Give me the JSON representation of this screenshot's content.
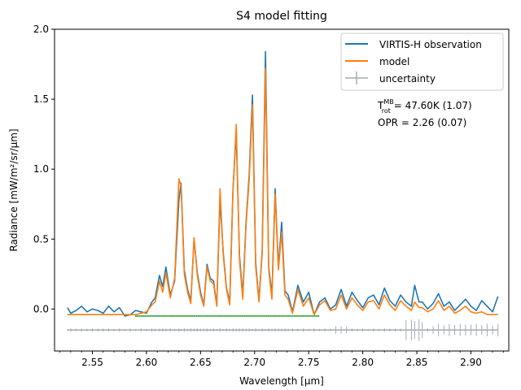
{
  "chart_data": {
    "type": "line",
    "title": "S4 model fitting",
    "xlabel": "Wavelength [μm]",
    "ylabel": "Radiance [mW/m²/sr/μm]",
    "xlim": [
      2.515,
      2.935
    ],
    "ylim": [
      -0.3,
      2.0
    ],
    "xticks": [
      2.55,
      2.6,
      2.65,
      2.7,
      2.75,
      2.8,
      2.85,
      2.9
    ],
    "xtick_labels": [
      "2.55",
      "2.60",
      "2.65",
      "2.70",
      "2.75",
      "2.80",
      "2.85",
      "2.90"
    ],
    "yticks": [
      0.0,
      0.5,
      1.0,
      1.5,
      2.0
    ],
    "ytick_labels": [
      "0.0",
      "0.5",
      "1.0",
      "1.5",
      "2.0"
    ],
    "legend": {
      "placement": "upper right",
      "entries": [
        {
          "label": "VIRTIS-H observation",
          "color": "#1f77b4",
          "style": "line"
        },
        {
          "label": "model",
          "color": "#ff7f0e",
          "style": "line"
        },
        {
          "label": "uncertainty",
          "color": "#a3acb5",
          "style": "errorbar"
        }
      ]
    },
    "annotations": {
      "trot_prefix": "T",
      "trot_sup": "MB",
      "trot_sub": "rot",
      "trot_value": " = 47.60K (1.07)",
      "opr": "OPR = 2.26 (0.07)"
    },
    "fit_band": {
      "x_start": 2.59,
      "x_end": 2.76,
      "y": -0.05,
      "color": "#2ca02c"
    },
    "uncertainty_offset": -0.15,
    "series": [
      {
        "name": "VIRTIS-H observation",
        "color": "#1f77b4",
        "x": [
          2.527,
          2.53,
          2.535,
          2.54,
          2.545,
          2.55,
          2.555,
          2.56,
          2.565,
          2.57,
          2.575,
          2.58,
          2.585,
          2.59,
          2.595,
          2.6,
          2.605,
          2.608,
          2.612,
          2.615,
          2.618,
          2.622,
          2.626,
          2.63,
          2.632,
          2.635,
          2.638,
          2.641,
          2.644,
          2.647,
          2.65,
          2.653,
          2.656,
          2.659,
          2.662,
          2.665,
          2.668,
          2.671,
          2.674,
          2.677,
          2.68,
          2.683,
          2.686,
          2.689,
          2.692,
          2.695,
          2.698,
          2.701,
          2.704,
          2.707,
          2.71,
          2.713,
          2.716,
          2.719,
          2.722,
          2.725,
          2.728,
          2.731,
          2.735,
          2.74,
          2.745,
          2.75,
          2.755,
          2.76,
          2.765,
          2.77,
          2.775,
          2.78,
          2.785,
          2.79,
          2.795,
          2.8,
          2.805,
          2.81,
          2.815,
          2.82,
          2.825,
          2.83,
          2.835,
          2.84,
          2.845,
          2.848,
          2.852,
          2.855,
          2.86,
          2.865,
          2.87,
          2.875,
          2.88,
          2.885,
          2.89,
          2.895,
          2.9,
          2.905,
          2.91,
          2.915,
          2.92,
          2.925
        ],
        "y": [
          0.01,
          -0.03,
          -0.01,
          0.02,
          -0.02,
          0.0,
          -0.01,
          -0.03,
          0.02,
          -0.02,
          0.01,
          -0.05,
          -0.04,
          -0.01,
          -0.02,
          -0.03,
          0.05,
          0.08,
          0.24,
          0.16,
          0.3,
          0.1,
          0.2,
          0.78,
          0.9,
          0.28,
          0.14,
          0.06,
          0.5,
          0.26,
          0.12,
          0.03,
          0.32,
          0.22,
          0.2,
          0.03,
          0.78,
          0.4,
          0.15,
          0.05,
          0.86,
          1.26,
          0.38,
          0.1,
          0.62,
          0.96,
          1.53,
          0.33,
          0.06,
          0.42,
          1.84,
          0.3,
          0.1,
          0.86,
          0.3,
          0.62,
          0.13,
          0.1,
          -0.02,
          0.17,
          0.05,
          0.12,
          -0.04,
          0.05,
          0.08,
          0.0,
          0.03,
          0.14,
          0.02,
          0.12,
          0.06,
          0.01,
          0.08,
          0.1,
          0.03,
          0.15,
          0.06,
          0.02,
          0.1,
          0.05,
          0.02,
          0.17,
          0.05,
          0.05,
          0.0,
          0.04,
          0.11,
          0.02,
          0.05,
          -0.01,
          0.03,
          0.07,
          0.02,
          -0.01,
          0.06,
          0.02,
          -0.02,
          0.09
        ]
      },
      {
        "name": "model",
        "color": "#ff7f0e",
        "x": [
          2.527,
          2.53,
          2.535,
          2.54,
          2.545,
          2.55,
          2.555,
          2.56,
          2.565,
          2.57,
          2.575,
          2.58,
          2.585,
          2.59,
          2.595,
          2.6,
          2.605,
          2.608,
          2.612,
          2.615,
          2.618,
          2.622,
          2.626,
          2.63,
          2.632,
          2.635,
          2.638,
          2.641,
          2.644,
          2.647,
          2.65,
          2.653,
          2.656,
          2.659,
          2.662,
          2.665,
          2.668,
          2.671,
          2.674,
          2.677,
          2.68,
          2.683,
          2.686,
          2.689,
          2.692,
          2.695,
          2.698,
          2.701,
          2.704,
          2.707,
          2.71,
          2.713,
          2.716,
          2.719,
          2.722,
          2.725,
          2.728,
          2.731,
          2.735,
          2.74,
          2.745,
          2.75,
          2.755,
          2.76,
          2.765,
          2.77,
          2.775,
          2.78,
          2.785,
          2.79,
          2.795,
          2.8,
          2.805,
          2.81,
          2.815,
          2.82,
          2.825,
          2.83,
          2.835,
          2.84,
          2.845,
          2.848,
          2.852,
          2.855,
          2.86,
          2.865,
          2.87,
          2.875,
          2.88,
          2.885,
          2.89,
          2.895,
          2.9,
          2.905,
          2.91,
          2.915,
          2.92,
          2.925
        ],
        "y": [
          -0.04,
          -0.04,
          -0.04,
          -0.04,
          -0.04,
          -0.04,
          -0.04,
          -0.04,
          -0.04,
          -0.04,
          -0.04,
          -0.04,
          -0.04,
          -0.04,
          -0.03,
          -0.02,
          0.03,
          0.05,
          0.2,
          0.12,
          0.26,
          0.08,
          0.22,
          0.93,
          0.88,
          0.25,
          0.12,
          0.04,
          0.51,
          0.24,
          0.1,
          0.02,
          0.3,
          0.2,
          0.18,
          0.02,
          0.86,
          0.38,
          0.14,
          0.03,
          0.84,
          1.32,
          0.35,
          0.07,
          0.6,
          0.92,
          1.46,
          0.3,
          0.05,
          0.4,
          1.72,
          0.28,
          0.07,
          0.82,
          0.28,
          0.55,
          0.1,
          0.07,
          -0.03,
          0.14,
          0.02,
          0.08,
          -0.04,
          0.03,
          0.06,
          -0.01,
          0.0,
          0.1,
          0.0,
          0.08,
          0.03,
          -0.01,
          0.05,
          0.06,
          0.0,
          0.1,
          0.03,
          -0.01,
          0.06,
          0.02,
          -0.01,
          0.05,
          0.01,
          0.01,
          -0.02,
          0.0,
          0.06,
          -0.01,
          0.02,
          -0.03,
          -0.01,
          0.02,
          -0.02,
          -0.03,
          -0.02,
          -0.04,
          -0.04,
          -0.04
        ]
      }
    ]
  }
}
